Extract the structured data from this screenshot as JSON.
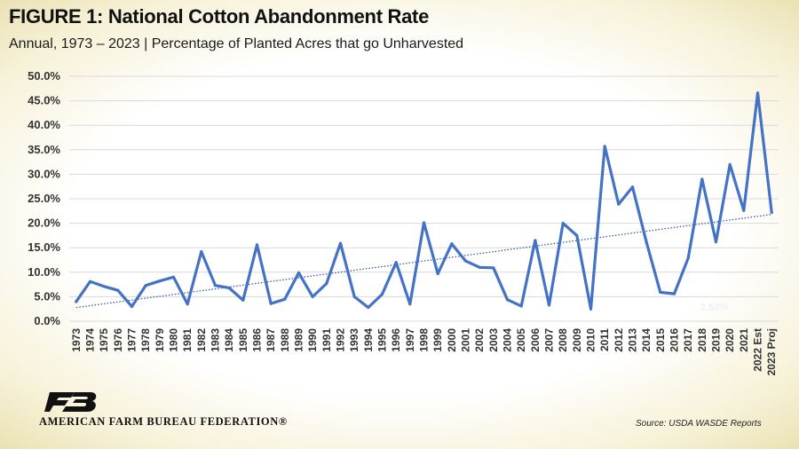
{
  "header": {
    "title": "FIGURE 1: National Cotton Abandonment Rate",
    "subtitle": "Annual, 1973 – 2023 | Percentage of Planted Acres that go Unharvested"
  },
  "footer": {
    "logo_text": "AMERICAN FARM BUREAU FEDERATION®",
    "logo_mark_letters": "FB",
    "source": "Source: USDA WASDE Reports"
  },
  "colors": {
    "series": "#4472c4",
    "trend": "#2e4f8f",
    "gridline": "#d9d9d9",
    "axis_text": "#333333"
  },
  "chart_data": {
    "type": "line",
    "title": "",
    "xlabel": "",
    "ylabel": "",
    "ylim": [
      0,
      50
    ],
    "yticks": [
      "0.0%",
      "5.0%",
      "10.0%",
      "15.0%",
      "20.0%",
      "25.0%",
      "30.0%",
      "35.0%",
      "40.0%",
      "45.0%",
      "50.0%"
    ],
    "grid": true,
    "legend": "none",
    "categories": [
      "1973",
      "1974",
      "1975",
      "1976",
      "1977",
      "1978",
      "1979",
      "1980",
      "1981",
      "1982",
      "1983",
      "1984",
      "1985",
      "1986",
      "1987",
      "1988",
      "1989",
      "1990",
      "1991",
      "1992",
      "1993",
      "1994",
      "1995",
      "1996",
      "1997",
      "1998",
      "1999",
      "2000",
      "2001",
      "2002",
      "2003",
      "2004",
      "2005",
      "2006",
      "2007",
      "2008",
      "2009",
      "2010",
      "2011",
      "2012",
      "2013",
      "2014",
      "2015",
      "2016",
      "2017",
      "2018",
      "2019",
      "2020",
      "2021",
      "2022 Est",
      "2023 Proj"
    ],
    "series": [
      {
        "values": [
          4.0,
          8.1,
          7.1,
          6.3,
          3.0,
          7.3,
          8.2,
          9.0,
          3.5,
          14.2,
          7.3,
          6.8,
          4.3,
          15.6,
          3.6,
          4.5,
          9.9,
          5.0,
          7.7,
          15.9,
          5.0,
          2.8,
          5.5,
          12.0,
          3.5,
          20.1,
          9.7,
          15.8,
          12.3,
          11.0,
          10.9,
          4.4,
          3.1,
          16.5,
          3.3,
          20.0,
          17.5,
          2.5,
          35.7,
          23.9,
          27.4,
          16.1,
          5.9,
          5.6,
          12.9,
          29.0,
          16.2,
          32.0,
          22.6,
          46.6,
          22.2
        ]
      }
    ],
    "trendline": {
      "type": "linear",
      "start": 2.8,
      "end": 21.8
    },
    "annotation": "2.53%"
  }
}
